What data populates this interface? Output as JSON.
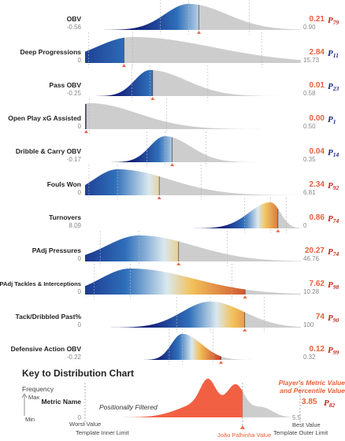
{
  "chart_data": {
    "type": "area",
    "title": "",
    "metrics": [
      {
        "label": "OBV",
        "player_value": "0.21",
        "percentile": "79",
        "min": "-0.56",
        "max": "0.90"
      },
      {
        "label": "Deep Progressions",
        "player_value": "2.84",
        "percentile": "11",
        "min": "0",
        "max": "15.73"
      },
      {
        "label": "Pass OBV",
        "player_value": "0.01",
        "percentile": "23",
        "min": "-0.25",
        "max": "0.58"
      },
      {
        "label": "Open Play xG Assisted",
        "player_value": "0.00",
        "percentile": "1",
        "min": "0",
        "max": "0.50"
      },
      {
        "label": "Dribble & Carry OBV",
        "player_value": "0.04",
        "percentile": "14",
        "min": "-0.17",
        "max": "0.35"
      },
      {
        "label": "Fouls Won",
        "player_value": "2.34",
        "percentile": "92",
        "min": "0",
        "max": "6.81"
      },
      {
        "label": "Turnovers",
        "player_value": "0.86",
        "percentile": "74",
        "min": "8.09",
        "max": "0"
      },
      {
        "label": "PAdj Pressures",
        "player_value": "20.27",
        "percentile": "74",
        "min": "0",
        "max": "46.76"
      },
      {
        "label": "PAdj Tackles & Interceptions",
        "player_value": "7.62",
        "percentile": "98",
        "min": "0",
        "max": "10.28"
      },
      {
        "label": "Tack/Dribbled Past%",
        "player_value": "74",
        "percentile": "90",
        "min": "0",
        "max": "100"
      },
      {
        "label": "Defensive Action OBV",
        "player_value": "0.12",
        "percentile": "99",
        "min": "-0.22",
        "max": "0.32"
      }
    ],
    "percentile_prefix": "P",
    "colors": {
      "low": "#13207a",
      "mid_blue": "#2f6fba",
      "mid_light": "#d9e8f0",
      "mid_yellow": "#f2c15a",
      "high": "#c1261e",
      "filtered": "#cdcdcd",
      "value_text": "#e8613a",
      "marker": "#f06a4a"
    }
  },
  "key": {
    "title": "Key to Distribution Chart",
    "frequency": "Frequency",
    "max": "Max",
    "min": "Min",
    "metric_name": "Metric Name",
    "zero": "0",
    "worst_value": "Worst Value",
    "filtered_note": "Positionally Filtered",
    "player_label_line1": "Player's Metric Value",
    "player_label_line2": "and Percentile Value",
    "example_value": "3.85",
    "example_pct": "82",
    "best_max": "5.5",
    "best_value": "Best Value",
    "inner_limit": "Template Inner Limit",
    "player_name": "João Palhinha Value",
    "outer_limit": "Template Outer Limit"
  }
}
